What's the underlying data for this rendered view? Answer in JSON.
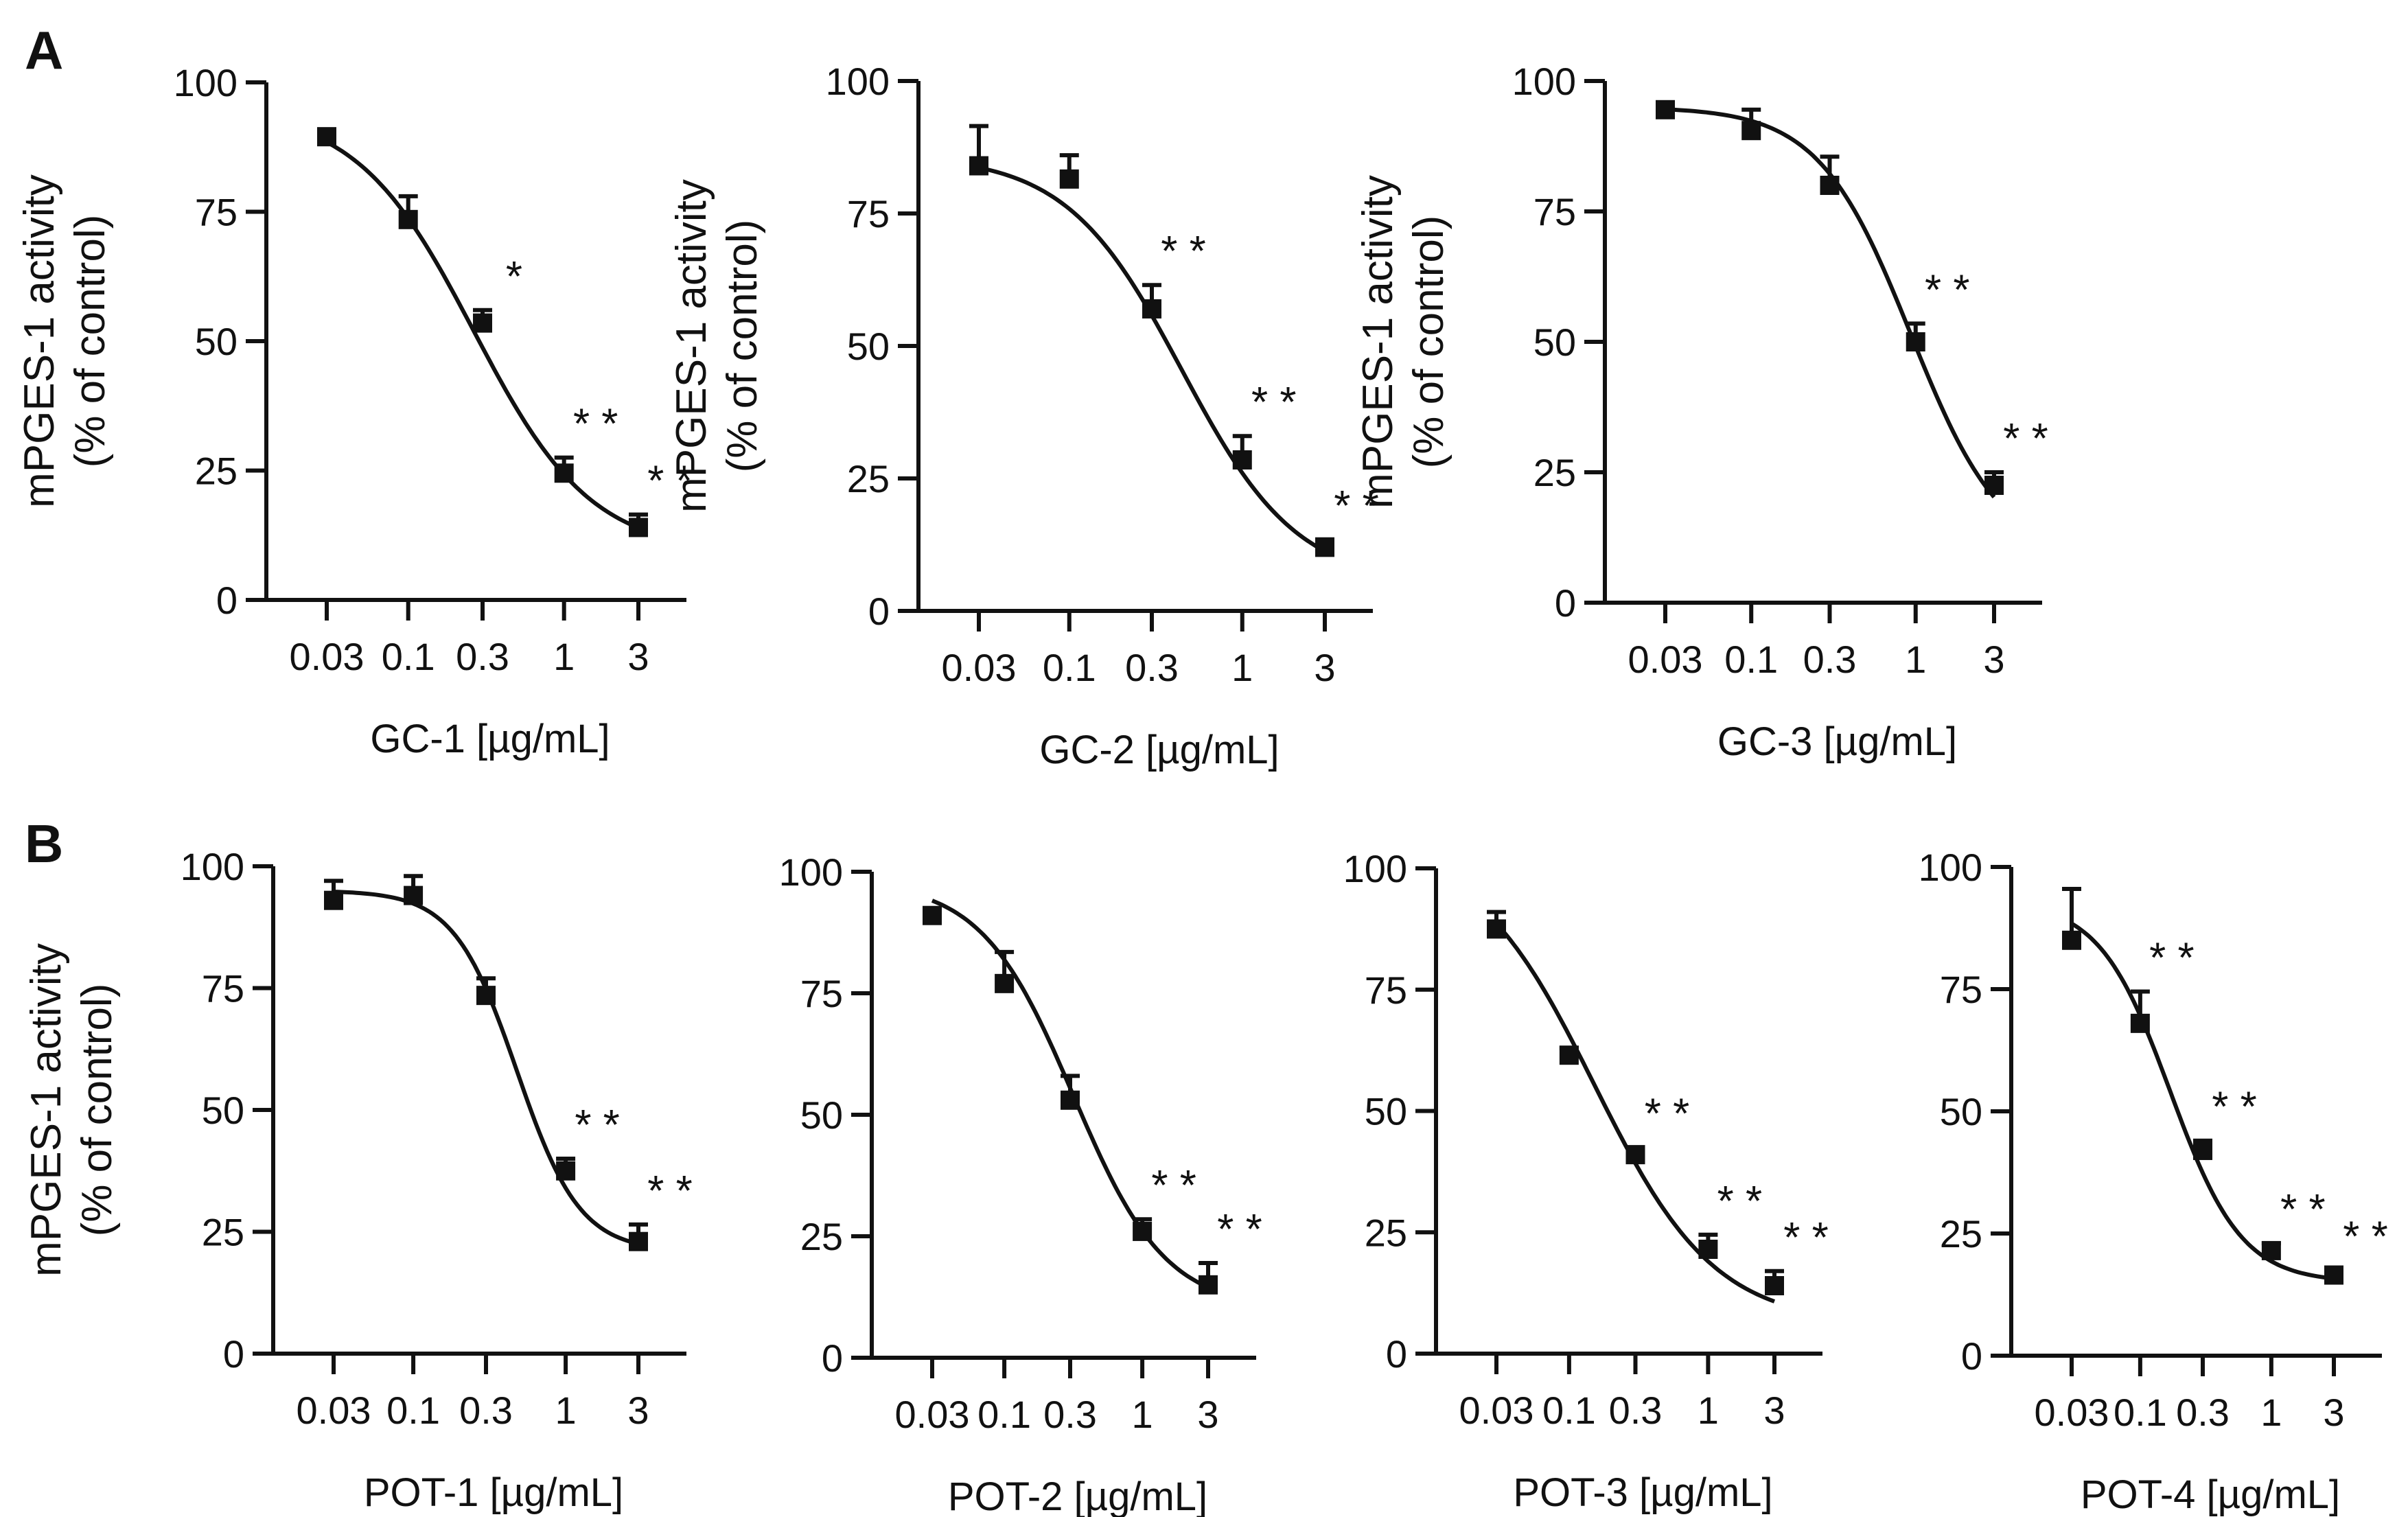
{
  "panels": {
    "A": {
      "label": "A"
    },
    "B": {
      "label": "B"
    }
  },
  "chart_data": [
    {
      "type": "scatter",
      "panel": "A",
      "title": "",
      "ylabel_lines": [
        "mPGES-1 activity",
        "(% of control)"
      ],
      "xlabel": "GC-1  [µg/mL]",
      "x": [
        0.03,
        0.1,
        0.3,
        1,
        3
      ],
      "x_tick_labels": [
        "0.03",
        "0.1",
        "0.3",
        "1",
        "3"
      ],
      "values": [
        89.5,
        73.5,
        53.5,
        24.5,
        14
      ],
      "errors": [
        0.8,
        4.5,
        2.5,
        3,
        2.5
      ],
      "significance": [
        "",
        "",
        "*",
        "**",
        "**"
      ],
      "y_ticks": [
        0,
        25,
        50,
        75,
        100
      ],
      "ylim": [
        0,
        100
      ],
      "curve": {
        "top": 95,
        "bottom": 9,
        "logIC50": -0.58,
        "hill": 1.15
      }
    },
    {
      "type": "scatter",
      "panel": "A",
      "title": "",
      "ylabel_lines": [
        "mPGES-1 activity",
        "(% of control)"
      ],
      "xlabel": "GC-2  [µg/mL]",
      "x": [
        0.03,
        0.1,
        0.3,
        1,
        3
      ],
      "x_tick_labels": [
        "0.03",
        "0.1",
        "0.3",
        "1",
        "3"
      ],
      "values": [
        84,
        81.5,
        57,
        28.5,
        12
      ],
      "errors": [
        7.5,
        4.5,
        4.5,
        4.5,
        1.5
      ],
      "significance": [
        "",
        "",
        "**",
        "**",
        "**"
      ],
      "y_ticks": [
        0,
        25,
        50,
        75,
        100
      ],
      "ylim": [
        0,
        100
      ],
      "curve": {
        "top": 86,
        "bottom": 5,
        "logIC50": -0.35,
        "hill": 1.3
      }
    },
    {
      "type": "scatter",
      "panel": "A",
      "title": "",
      "ylabel_lines": [
        "mPGES-1 activity",
        "(% of control)"
      ],
      "xlabel": "GC-3  [µg/mL]",
      "x": [
        0.03,
        0.1,
        0.3,
        1,
        3
      ],
      "x_tick_labels": [
        "0.03",
        "0.1",
        "0.3",
        "1",
        "3"
      ],
      "values": [
        94.5,
        90.5,
        80,
        50,
        22.5
      ],
      "errors": [
        0.5,
        4,
        5.5,
        3.5,
        2.5
      ],
      "significance": [
        "",
        "",
        "",
        "**",
        "**"
      ],
      "y_ticks": [
        0,
        25,
        50,
        75,
        100
      ],
      "ylim": [
        0,
        100
      ],
      "curve": {
        "top": 95,
        "bottom": 8,
        "logIC50": -0.03,
        "hill": 1.55
      }
    },
    {
      "type": "scatter",
      "panel": "B",
      "title": "",
      "ylabel_lines": [
        "mPGES-1 activity",
        "(% of control)"
      ],
      "xlabel": "POT-1  [µg/mL]",
      "x": [
        0.03,
        0.1,
        0.3,
        1,
        3
      ],
      "x_tick_labels": [
        "0.03",
        "0.1",
        "0.3",
        "1",
        "3"
      ],
      "values": [
        93,
        94,
        73.5,
        37.5,
        23
      ],
      "errors": [
        4,
        4,
        3.5,
        2.5,
        3.5
      ],
      "significance": [
        "",
        "",
        "",
        "**",
        "**"
      ],
      "y_ticks": [
        0,
        25,
        50,
        75,
        100
      ],
      "ylim": [
        0,
        100
      ],
      "curve": {
        "top": 95,
        "bottom": 21,
        "logIC50": -0.32,
        "hill": 2.1
      }
    },
    {
      "type": "scatter",
      "panel": "B",
      "title": "",
      "ylabel_lines": [],
      "xlabel": "POT-2  [µg/mL]",
      "x": [
        0.03,
        0.1,
        0.3,
        1,
        3
      ],
      "x_tick_labels": [
        "0.03",
        "0.1",
        "0.3",
        "1",
        "3"
      ],
      "values": [
        91,
        77,
        53,
        26,
        15
      ],
      "errors": [
        0.8,
        6.5,
        5,
        2.5,
        4.5
      ],
      "significance": [
        "",
        "",
        "",
        "**",
        "**"
      ],
      "y_ticks": [
        0,
        25,
        50,
        75,
        100
      ],
      "ylim": [
        0,
        100
      ],
      "curve": {
        "top": 98,
        "bottom": 10,
        "logIC50": -0.5,
        "hill": 1.3
      }
    },
    {
      "type": "scatter",
      "panel": "B",
      "title": "",
      "ylabel_lines": [],
      "xlabel": "POT-3  [µg/mL]",
      "x": [
        0.03,
        0.1,
        0.3,
        1,
        3
      ],
      "x_tick_labels": [
        "0.03",
        "0.1",
        "0.3",
        "1",
        "3"
      ],
      "values": [
        87.5,
        61.5,
        41,
        21.5,
        14
      ],
      "errors": [
        3.5,
        1.5,
        1.5,
        3,
        3
      ],
      "significance": [
        "",
        "",
        "**",
        "**",
        "**"
      ],
      "y_ticks": [
        0,
        25,
        50,
        75,
        100
      ],
      "ylim": [
        0,
        100
      ],
      "curve": {
        "top": 105,
        "bottom": 6,
        "logIC50": -0.82,
        "hill": 1.0
      }
    },
    {
      "type": "scatter",
      "panel": "B",
      "title": "",
      "ylabel_lines": [],
      "xlabel": "POT-4  [µg/mL]",
      "x": [
        0.03,
        0.1,
        0.3,
        1,
        3
      ],
      "x_tick_labels": [
        "0.03",
        "0.1",
        "0.3",
        "1",
        "3"
      ],
      "values": [
        85,
        68,
        42,
        21.5,
        16.5
      ],
      "errors": [
        10.5,
        6.5,
        2,
        1.5,
        1
      ],
      "significance": [
        "",
        "**",
        "**",
        "**",
        "**"
      ],
      "y_ticks": [
        0,
        25,
        50,
        75,
        100
      ],
      "ylim": [
        0,
        100
      ],
      "curve": {
        "top": 93,
        "bottom": 15,
        "logIC50": -0.77,
        "hill": 1.6
      }
    }
  ]
}
